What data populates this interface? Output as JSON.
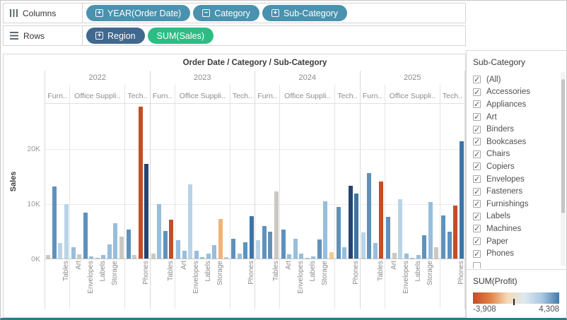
{
  "shelves": {
    "columns": {
      "label": "Columns",
      "pills": [
        {
          "label": "YEAR(Order Date)",
          "expand": "plus",
          "color": "#4a92ad"
        },
        {
          "label": "Category",
          "expand": "minus",
          "color": "#4a92ad"
        },
        {
          "label": "Sub-Category",
          "expand": "plus",
          "color": "#4a92ad"
        }
      ]
    },
    "rows": {
      "label": "Rows",
      "pills": [
        {
          "label": "Region",
          "expand": "plus",
          "color": "#41688e"
        },
        {
          "label": "SUM(Sales)",
          "expand": "none",
          "color": "#2cbd85"
        }
      ]
    }
  },
  "chart_data": {
    "type": "bar",
    "title": "Order Date / Category / Sub-Category",
    "ylabel": "Sales",
    "ylim_k": [
      0,
      28.3
    ],
    "yticks": [
      {
        "label": "0K",
        "k": 0
      },
      {
        "label": "10K",
        "k": 10
      },
      {
        "label": "20K",
        "k": 20
      }
    ],
    "grid": "horizontal",
    "palette": {
      "g": "#cac9c1",
      "pb": "#b9d4e7",
      "lb": "#97bedb",
      "mb": "#5e92bd",
      "sb": "#3c74a7",
      "db": "#26456e",
      "po": "#f3c98f",
      "mo": "#f1b378",
      "ro": "#c44c27"
    },
    "years": [
      {
        "year": "2022",
        "panes": [
          {
            "header": "Furn..",
            "bars": [
              {
                "v": 0.6,
                "c": "g"
              },
              {
                "v": 13.0,
                "c": "mb"
              },
              {
                "v": 2.8,
                "c": "pb"
              },
              {
                "v": 9.8,
                "c": "pb",
                "x": "Tables"
              }
            ]
          },
          {
            "header": "Office Suppli..",
            "bars": [
              {
                "v": 2.0,
                "c": "lb"
              },
              {
                "v": 0.8,
                "c": "g",
                "x": "Art"
              },
              {
                "v": 8.3,
                "c": "mb"
              },
              {
                "v": 0.35,
                "c": "lb",
                "x": "Envelopes"
              },
              {
                "v": 0.15,
                "c": "lb"
              },
              {
                "v": 0.6,
                "c": "lb",
                "x": "Labels"
              },
              {
                "v": 2.6,
                "c": "lb"
              },
              {
                "v": 6.4,
                "c": "lb",
                "x": "Storage"
              },
              {
                "v": 4.0,
                "c": "g"
              }
            ]
          },
          {
            "header": "Tech..",
            "bars": [
              {
                "v": 5.3,
                "c": "mb"
              },
              {
                "v": 0.6,
                "c": "g"
              },
              {
                "v": 27.5,
                "c": "ro"
              },
              {
                "v": 17.2,
                "c": "db",
                "x": "Phones"
              }
            ]
          }
        ]
      },
      {
        "year": "2023",
        "panes": [
          {
            "header": "Furn..",
            "bars": [
              {
                "v": 0.9,
                "c": "g"
              },
              {
                "v": 9.9,
                "c": "lb"
              },
              {
                "v": 5.0,
                "c": "mb"
              },
              {
                "v": 7.1,
                "c": "ro",
                "x": "Tables"
              }
            ]
          },
          {
            "header": "Office Suppli..",
            "bars": [
              {
                "v": 3.3,
                "c": "lb"
              },
              {
                "v": 1.4,
                "c": "lb",
                "x": "Art"
              },
              {
                "v": 13.4,
                "c": "pb"
              },
              {
                "v": 1.4,
                "c": "lb",
                "x": "Envelopes"
              },
              {
                "v": 0.2,
                "c": "lb"
              },
              {
                "v": 0.9,
                "c": "lb",
                "x": "Labels"
              },
              {
                "v": 2.4,
                "c": "lb"
              },
              {
                "v": 7.2,
                "c": "mo",
                "x": "Storage"
              },
              {
                "v": 0.3,
                "c": "g"
              }
            ]
          },
          {
            "header": "Tech..",
            "bars": [
              {
                "v": 3.6,
                "c": "mb"
              },
              {
                "v": 0.9,
                "c": "lb"
              },
              {
                "v": 2.9,
                "c": "mb"
              },
              {
                "v": 7.7,
                "c": "sb",
                "x": "Phones"
              }
            ]
          }
        ]
      },
      {
        "year": "2024",
        "panes": [
          {
            "header": "Furn..",
            "bars": [
              {
                "v": 3.3,
                "c": "pb"
              },
              {
                "v": 5.9,
                "c": "mb"
              },
              {
                "v": 4.9,
                "c": "mb"
              },
              {
                "v": 12.2,
                "c": "g",
                "x": "Tables"
              }
            ]
          },
          {
            "header": "Office Suppli..",
            "bars": [
              {
                "v": 5.3,
                "c": "mb"
              },
              {
                "v": 0.8,
                "c": "lb",
                "x": "Art"
              },
              {
                "v": 3.6,
                "c": "lb"
              },
              {
                "v": 0.9,
                "c": "lb",
                "x": "Envelopes"
              },
              {
                "v": 0.15,
                "c": "lb"
              },
              {
                "v": 0.4,
                "c": "lb",
                "x": "Labels"
              },
              {
                "v": 3.5,
                "c": "mb"
              },
              {
                "v": 10.4,
                "c": "lb",
                "x": "Storage"
              },
              {
                "v": 1.2,
                "c": "po"
              }
            ]
          },
          {
            "header": "Tech..",
            "bars": [
              {
                "v": 9.3,
                "c": "mb"
              },
              {
                "v": 2.1,
                "c": "lb"
              },
              {
                "v": 13.2,
                "c": "db"
              },
              {
                "v": 11.8,
                "c": "sb",
                "x": "Phones"
              }
            ]
          }
        ]
      },
      {
        "year": "2025",
        "panes": [
          {
            "header": "Furn..",
            "bars": [
              {
                "v": 4.7,
                "c": "pb"
              },
              {
                "v": 15.5,
                "c": "mb"
              },
              {
                "v": 2.8,
                "c": "lb"
              },
              {
                "v": 14.0,
                "c": "ro",
                "x": "Tables"
              }
            ]
          },
          {
            "header": "Office Suppli..",
            "bars": [
              {
                "v": 7.6,
                "c": "mb"
              },
              {
                "v": 1.0,
                "c": "g",
                "x": "Art"
              },
              {
                "v": 10.8,
                "c": "pb"
              },
              {
                "v": 0.9,
                "c": "lb",
                "x": "Envelopes"
              },
              {
                "v": 0.1,
                "c": "lb"
              },
              {
                "v": 0.6,
                "c": "lb",
                "x": "Labels"
              },
              {
                "v": 4.2,
                "c": "mb"
              },
              {
                "v": 10.3,
                "c": "lb",
                "x": "Storage"
              },
              {
                "v": 2.0,
                "c": "g"
              }
            ]
          },
          {
            "header": "Tech..",
            "bars": [
              {
                "v": 7.8,
                "c": "mb"
              },
              {
                "v": 4.9,
                "c": "mb"
              },
              {
                "v": 9.6,
                "c": "ro"
              },
              {
                "v": 21.3,
                "c": "sb",
                "x": "Phones"
              }
            ]
          }
        ]
      }
    ]
  },
  "filter": {
    "title": "Sub-Category",
    "items": [
      {
        "label": "(All)",
        "checked": true
      },
      {
        "label": "Accessories",
        "checked": true
      },
      {
        "label": "Appliances",
        "checked": true
      },
      {
        "label": "Art",
        "checked": true
      },
      {
        "label": "Binders",
        "checked": true
      },
      {
        "label": "Bookcases",
        "checked": true
      },
      {
        "label": "Chairs",
        "checked": true
      },
      {
        "label": "Copiers",
        "checked": true
      },
      {
        "label": "Envelopes",
        "checked": true
      },
      {
        "label": "Fasteners",
        "checked": true
      },
      {
        "label": "Furnishings",
        "checked": true
      },
      {
        "label": "Labels",
        "checked": true
      },
      {
        "label": "Machines",
        "checked": true
      },
      {
        "label": "Paper",
        "checked": true
      },
      {
        "label": "Phones",
        "checked": true
      },
      {
        "label": "",
        "checked": false,
        "partial": true
      }
    ]
  },
  "legend": {
    "title": "SUM(Profit)",
    "min_label": "-3,908",
    "max_label": "4,308",
    "gradient": [
      "#c44c27",
      "#e08145",
      "#f6dab7",
      "#dde8f1",
      "#a9c8e1",
      "#4379ab"
    ],
    "tick_fraction": 0.47
  }
}
